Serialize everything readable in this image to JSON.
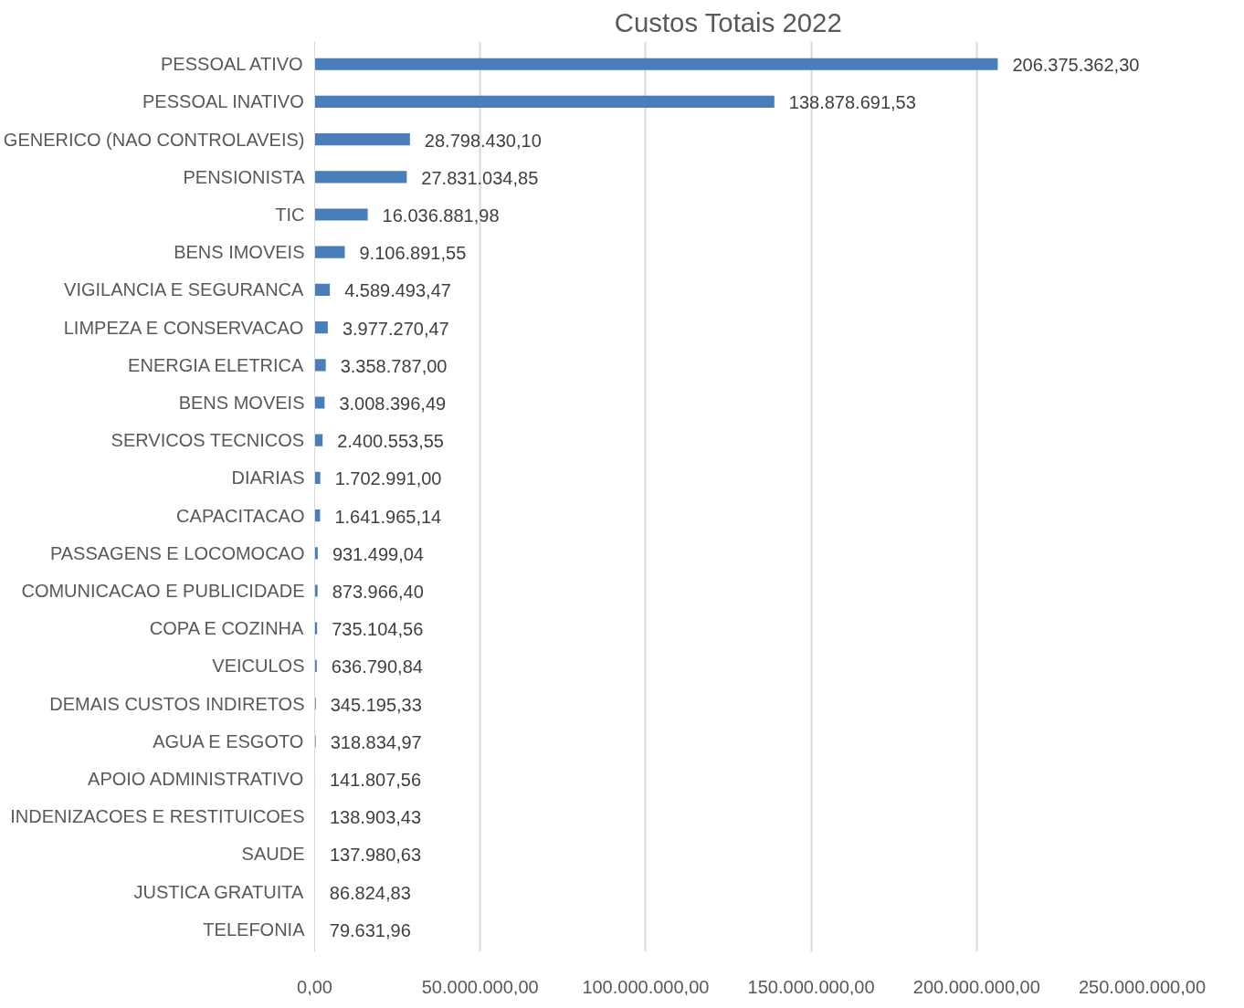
{
  "chart_data": {
    "type": "bar",
    "orientation": "horizontal",
    "title": "Custos Totais 2022",
    "categories": [
      "PESSOAL ATIVO",
      "PESSOAL INATIVO",
      "GENERICO (NAO CONTROLAVEIS)",
      "PENSIONISTA",
      "TIC",
      "BENS IMOVEIS",
      "VIGILANCIA E SEGURANCA",
      "LIMPEZA E CONSERVACAO",
      "ENERGIA ELETRICA",
      "BENS MOVEIS",
      "SERVICOS TECNICOS",
      "DIARIAS",
      "CAPACITACAO",
      "PASSAGENS E LOCOMOCAO",
      "COMUNICACAO E PUBLICIDADE",
      "COPA E COZINHA",
      "VEICULOS",
      "DEMAIS CUSTOS INDIRETOS",
      "AGUA E ESGOTO",
      "APOIO ADMINISTRATIVO",
      "INDENIZACOES E RESTITUICOES",
      "SAUDE",
      "JUSTICA GRATUITA",
      "TELEFONIA"
    ],
    "values": [
      206375362.3,
      138878691.53,
      28798430.1,
      27831034.85,
      16036881.98,
      9106891.55,
      4589493.47,
      3977270.47,
      3358787.0,
      3008396.49,
      2400553.55,
      1702991.0,
      1641965.14,
      931499.04,
      873966.4,
      735104.56,
      636790.84,
      345195.33,
      318834.97,
      141807.56,
      138903.43,
      137980.63,
      86824.83,
      79631.96
    ],
    "value_labels": [
      "206.375.362,30",
      "138.878.691,53",
      "28.798.430,10",
      "27.831.034,85",
      "16.036.881,98",
      "9.106.891,55",
      "4.589.493,47",
      "3.977.270,47",
      "3.358.787,00",
      "3.008.396,49",
      "2.400.553,55",
      "1.702.991,00",
      "1.641.965,14",
      "931.499,04",
      "873.966,40",
      "735.104,56",
      "636.790,84",
      "345.195,33",
      "318.834,97",
      "141.807,56",
      "138.903,43",
      "137.980,63",
      "86.824,83",
      "79.631,96"
    ],
    "color": "#4a7ebb",
    "xlim": [
      0,
      250000000
    ],
    "xticks": [
      {
        "value": 0,
        "label": "0,00"
      },
      {
        "value": 50000000,
        "label": "50.000.000,00"
      },
      {
        "value": 100000000,
        "label": "100.000.000,00"
      },
      {
        "value": 150000000,
        "label": "150.000.000,00"
      },
      {
        "value": 200000000,
        "label": "200.000.000,00"
      },
      {
        "value": 250000000,
        "label": "250.000.000,00"
      }
    ],
    "grid": "x"
  }
}
